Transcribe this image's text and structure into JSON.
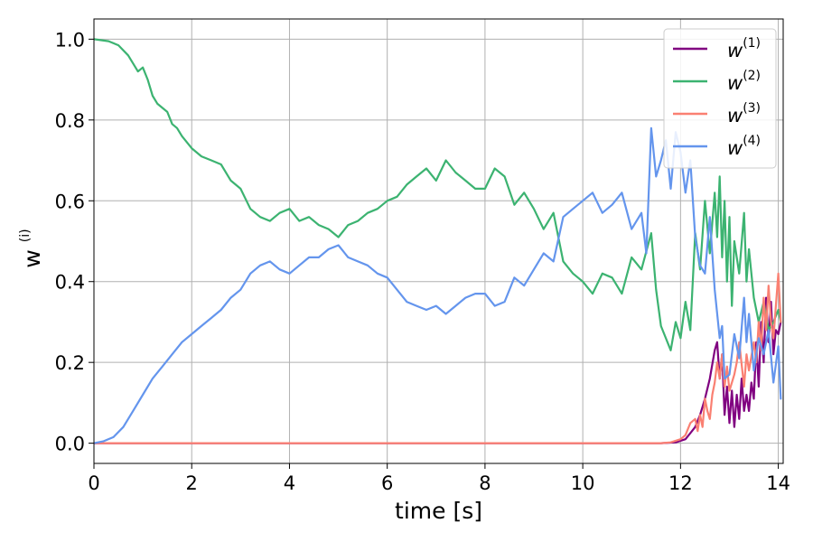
{
  "chart_data": {
    "type": "line",
    "xlabel": "time [s]",
    "ylabel": {
      "base": "w",
      "sup": "(i)"
    },
    "xlim": [
      0,
      14.1
    ],
    "ylim": [
      -0.05,
      1.05
    ],
    "xticks": [
      0,
      2,
      4,
      6,
      8,
      10,
      12,
      14
    ],
    "yticks": [
      0.0,
      0.2,
      0.4,
      0.6,
      0.8,
      1.0
    ],
    "xtick_labels": [
      "0",
      "2",
      "4",
      "6",
      "8",
      "10",
      "12",
      "14"
    ],
    "ytick_labels": [
      "0.0",
      "0.2",
      "0.4",
      "0.6",
      "0.8",
      "1.0"
    ],
    "grid": true,
    "legend_position": "top-right",
    "series": [
      {
        "name": "w",
        "sup": "(1)",
        "color": "#800080",
        "points": [
          [
            0,
            0
          ],
          [
            11.6,
            0
          ],
          [
            11.9,
            0.002
          ],
          [
            12.1,
            0.01
          ],
          [
            12.3,
            0.04
          ],
          [
            12.4,
            0.07
          ],
          [
            12.5,
            0.11
          ],
          [
            12.6,
            0.16
          ],
          [
            12.7,
            0.23
          ],
          [
            12.75,
            0.25
          ],
          [
            12.8,
            0.16
          ],
          [
            12.85,
            0.22
          ],
          [
            12.9,
            0.07
          ],
          [
            12.95,
            0.14
          ],
          [
            13.0,
            0.05
          ],
          [
            13.05,
            0.13
          ],
          [
            13.1,
            0.04
          ],
          [
            13.15,
            0.12
          ],
          [
            13.2,
            0.06
          ],
          [
            13.25,
            0.16
          ],
          [
            13.3,
            0.08
          ],
          [
            13.35,
            0.12
          ],
          [
            13.4,
            0.08
          ],
          [
            13.45,
            0.15
          ],
          [
            13.5,
            0.11
          ],
          [
            13.55,
            0.25
          ],
          [
            13.6,
            0.14
          ],
          [
            13.65,
            0.3
          ],
          [
            13.7,
            0.2
          ],
          [
            13.75,
            0.36
          ],
          [
            13.8,
            0.25
          ],
          [
            13.85,
            0.35
          ],
          [
            13.9,
            0.22
          ],
          [
            13.95,
            0.28
          ],
          [
            14.0,
            0.27
          ],
          [
            14.05,
            0.3
          ]
        ]
      },
      {
        "name": "w",
        "sup": "(2)",
        "color": "#3cb371",
        "points": [
          [
            0,
            1.0
          ],
          [
            0.3,
            0.995
          ],
          [
            0.5,
            0.985
          ],
          [
            0.7,
            0.96
          ],
          [
            0.9,
            0.92
          ],
          [
            1.0,
            0.93
          ],
          [
            1.1,
            0.9
          ],
          [
            1.2,
            0.86
          ],
          [
            1.3,
            0.84
          ],
          [
            1.5,
            0.82
          ],
          [
            1.6,
            0.79
          ],
          [
            1.7,
            0.78
          ],
          [
            1.8,
            0.76
          ],
          [
            2.0,
            0.73
          ],
          [
            2.2,
            0.71
          ],
          [
            2.4,
            0.7
          ],
          [
            2.6,
            0.69
          ],
          [
            2.8,
            0.65
          ],
          [
            3.0,
            0.63
          ],
          [
            3.2,
            0.58
          ],
          [
            3.4,
            0.56
          ],
          [
            3.6,
            0.55
          ],
          [
            3.8,
            0.57
          ],
          [
            4.0,
            0.58
          ],
          [
            4.2,
            0.55
          ],
          [
            4.4,
            0.56
          ],
          [
            4.6,
            0.54
          ],
          [
            4.8,
            0.53
          ],
          [
            5.0,
            0.51
          ],
          [
            5.2,
            0.54
          ],
          [
            5.4,
            0.55
          ],
          [
            5.6,
            0.57
          ],
          [
            5.8,
            0.58
          ],
          [
            6.0,
            0.6
          ],
          [
            6.2,
            0.61
          ],
          [
            6.4,
            0.64
          ],
          [
            6.6,
            0.66
          ],
          [
            6.8,
            0.68
          ],
          [
            7.0,
            0.65
          ],
          [
            7.2,
            0.7
          ],
          [
            7.4,
            0.67
          ],
          [
            7.6,
            0.65
          ],
          [
            7.8,
            0.63
          ],
          [
            8.0,
            0.63
          ],
          [
            8.2,
            0.68
          ],
          [
            8.4,
            0.66
          ],
          [
            8.6,
            0.59
          ],
          [
            8.8,
            0.62
          ],
          [
            9.0,
            0.58
          ],
          [
            9.2,
            0.53
          ],
          [
            9.4,
            0.57
          ],
          [
            9.6,
            0.45
          ],
          [
            9.8,
            0.42
          ],
          [
            10.0,
            0.4
          ],
          [
            10.2,
            0.37
          ],
          [
            10.4,
            0.42
          ],
          [
            10.6,
            0.41
          ],
          [
            10.8,
            0.37
          ],
          [
            11.0,
            0.46
          ],
          [
            11.2,
            0.43
          ],
          [
            11.4,
            0.52
          ],
          [
            11.5,
            0.38
          ],
          [
            11.6,
            0.29
          ],
          [
            11.8,
            0.23
          ],
          [
            11.9,
            0.3
          ],
          [
            12.0,
            0.26
          ],
          [
            12.1,
            0.35
          ],
          [
            12.2,
            0.28
          ],
          [
            12.3,
            0.52
          ],
          [
            12.4,
            0.43
          ],
          [
            12.5,
            0.6
          ],
          [
            12.6,
            0.47
          ],
          [
            12.7,
            0.62
          ],
          [
            12.75,
            0.51
          ],
          [
            12.8,
            0.66
          ],
          [
            12.85,
            0.46
          ],
          [
            12.9,
            0.6
          ],
          [
            12.95,
            0.4
          ],
          [
            13.0,
            0.56
          ],
          [
            13.05,
            0.34
          ],
          [
            13.1,
            0.5
          ],
          [
            13.2,
            0.42
          ],
          [
            13.3,
            0.57
          ],
          [
            13.35,
            0.4
          ],
          [
            13.4,
            0.48
          ],
          [
            13.5,
            0.36
          ],
          [
            13.6,
            0.3
          ],
          [
            13.7,
            0.35
          ],
          [
            13.8,
            0.28
          ],
          [
            13.9,
            0.3
          ],
          [
            14.0,
            0.33
          ],
          [
            14.05,
            0.3
          ]
        ]
      },
      {
        "name": "w",
        "sup": "(3)",
        "color": "#fa8072",
        "points": [
          [
            0,
            0
          ],
          [
            11.6,
            0
          ],
          [
            11.8,
            0.002
          ],
          [
            12.0,
            0.01
          ],
          [
            12.1,
            0.02
          ],
          [
            12.2,
            0.05
          ],
          [
            12.3,
            0.06
          ],
          [
            12.35,
            0.03
          ],
          [
            12.4,
            0.07
          ],
          [
            12.45,
            0.04
          ],
          [
            12.5,
            0.11
          ],
          [
            12.55,
            0.08
          ],
          [
            12.6,
            0.06
          ],
          [
            12.65,
            0.12
          ],
          [
            12.7,
            0.15
          ],
          [
            12.75,
            0.2
          ],
          [
            12.8,
            0.16
          ],
          [
            12.85,
            0.22
          ],
          [
            12.9,
            0.14
          ],
          [
            12.95,
            0.19
          ],
          [
            13.0,
            0.13
          ],
          [
            13.1,
            0.17
          ],
          [
            13.15,
            0.2
          ],
          [
            13.2,
            0.25
          ],
          [
            13.3,
            0.14
          ],
          [
            13.35,
            0.22
          ],
          [
            13.4,
            0.18
          ],
          [
            13.5,
            0.25
          ],
          [
            13.55,
            0.2
          ],
          [
            13.6,
            0.3
          ],
          [
            13.65,
            0.23
          ],
          [
            13.7,
            0.36
          ],
          [
            13.75,
            0.28
          ],
          [
            13.8,
            0.39
          ],
          [
            13.85,
            0.3
          ],
          [
            13.9,
            0.26
          ],
          [
            13.95,
            0.34
          ],
          [
            14.0,
            0.42
          ],
          [
            14.05,
            0.3
          ]
        ]
      },
      {
        "name": "w",
        "sup": "(4)",
        "color": "#6495ed",
        "points": [
          [
            0,
            0
          ],
          [
            0.2,
            0.005
          ],
          [
            0.4,
            0.015
          ],
          [
            0.6,
            0.04
          ],
          [
            0.8,
            0.08
          ],
          [
            1.0,
            0.12
          ],
          [
            1.2,
            0.16
          ],
          [
            1.4,
            0.19
          ],
          [
            1.6,
            0.22
          ],
          [
            1.8,
            0.25
          ],
          [
            2.0,
            0.27
          ],
          [
            2.2,
            0.29
          ],
          [
            2.4,
            0.31
          ],
          [
            2.6,
            0.33
          ],
          [
            2.8,
            0.36
          ],
          [
            3.0,
            0.38
          ],
          [
            3.2,
            0.42
          ],
          [
            3.4,
            0.44
          ],
          [
            3.6,
            0.45
          ],
          [
            3.8,
            0.43
          ],
          [
            4.0,
            0.42
          ],
          [
            4.2,
            0.44
          ],
          [
            4.4,
            0.46
          ],
          [
            4.6,
            0.46
          ],
          [
            4.8,
            0.48
          ],
          [
            5.0,
            0.49
          ],
          [
            5.2,
            0.46
          ],
          [
            5.4,
            0.45
          ],
          [
            5.6,
            0.44
          ],
          [
            5.8,
            0.42
          ],
          [
            6.0,
            0.41
          ],
          [
            6.2,
            0.38
          ],
          [
            6.4,
            0.35
          ],
          [
            6.6,
            0.34
          ],
          [
            6.8,
            0.33
          ],
          [
            7.0,
            0.34
          ],
          [
            7.2,
            0.32
          ],
          [
            7.4,
            0.34
          ],
          [
            7.6,
            0.36
          ],
          [
            7.8,
            0.37
          ],
          [
            8.0,
            0.37
          ],
          [
            8.2,
            0.34
          ],
          [
            8.4,
            0.35
          ],
          [
            8.6,
            0.41
          ],
          [
            8.8,
            0.39
          ],
          [
            9.0,
            0.43
          ],
          [
            9.2,
            0.47
          ],
          [
            9.4,
            0.45
          ],
          [
            9.6,
            0.56
          ],
          [
            9.8,
            0.58
          ],
          [
            10.0,
            0.6
          ],
          [
            10.2,
            0.62
          ],
          [
            10.4,
            0.57
          ],
          [
            10.6,
            0.59
          ],
          [
            10.8,
            0.62
          ],
          [
            11.0,
            0.53
          ],
          [
            11.2,
            0.57
          ],
          [
            11.3,
            0.47
          ],
          [
            11.4,
            0.78
          ],
          [
            11.5,
            0.66
          ],
          [
            11.6,
            0.7
          ],
          [
            11.7,
            0.75
          ],
          [
            11.8,
            0.63
          ],
          [
            11.9,
            0.77
          ],
          [
            12.0,
            0.72
          ],
          [
            12.1,
            0.62
          ],
          [
            12.2,
            0.7
          ],
          [
            12.3,
            0.51
          ],
          [
            12.4,
            0.44
          ],
          [
            12.5,
            0.42
          ],
          [
            12.6,
            0.56
          ],
          [
            12.7,
            0.38
          ],
          [
            12.8,
            0.26
          ],
          [
            12.85,
            0.29
          ],
          [
            12.9,
            0.16
          ],
          [
            13.0,
            0.17
          ],
          [
            13.1,
            0.27
          ],
          [
            13.2,
            0.21
          ],
          [
            13.3,
            0.36
          ],
          [
            13.35,
            0.25
          ],
          [
            13.4,
            0.32
          ],
          [
            13.5,
            0.18
          ],
          [
            13.6,
            0.26
          ],
          [
            13.7,
            0.22
          ],
          [
            13.8,
            0.28
          ],
          [
            13.9,
            0.15
          ],
          [
            14.0,
            0.24
          ],
          [
            14.05,
            0.11
          ]
        ]
      }
    ]
  }
}
